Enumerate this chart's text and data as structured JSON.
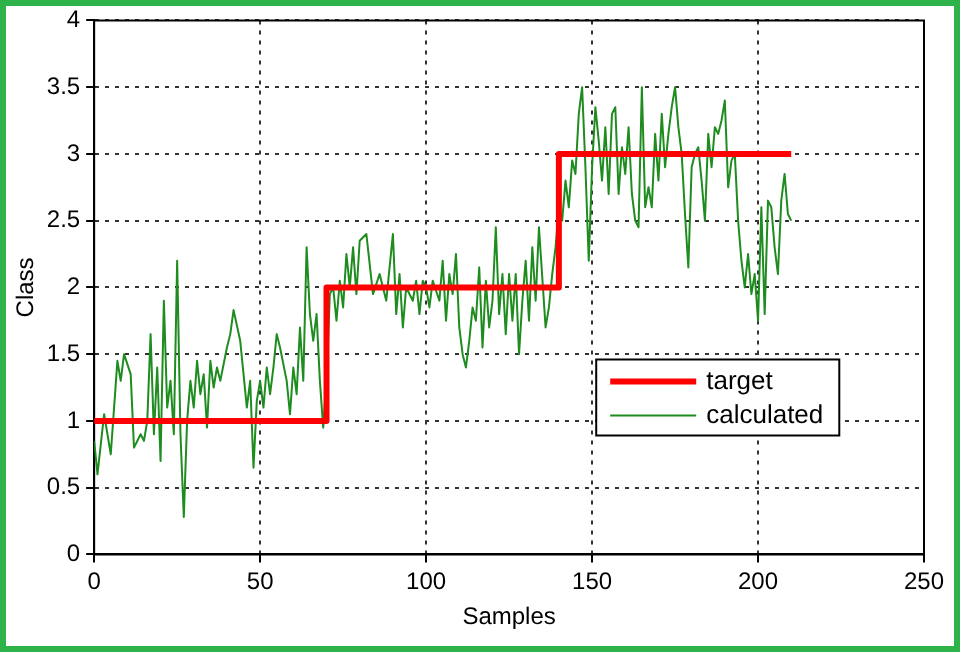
{
  "chart_data": {
    "type": "line",
    "xlabel": "Samples",
    "ylabel": "Class",
    "xlim": [
      0,
      250
    ],
    "xticks": [
      0,
      50,
      100,
      150,
      200,
      250
    ],
    "ylim": [
      0,
      4
    ],
    "yticks": [
      0,
      0.5,
      1,
      1.5,
      2,
      2.5,
      3,
      3.5,
      4
    ],
    "grid": true,
    "legend": "right",
    "marker": "none",
    "series": [
      {
        "name": "target",
        "color": "#ff0000",
        "x": [
          0,
          70,
          70,
          140,
          140,
          210
        ],
        "values": [
          1,
          1,
          2,
          2,
          3,
          3
        ]
      },
      {
        "name": "calculated",
        "color": "#1e8c1e",
        "x": [
          0,
          1,
          3,
          5,
          7,
          8,
          9,
          11,
          12,
          14,
          15,
          16,
          17,
          18,
          19,
          20,
          21,
          22,
          23,
          24,
          25,
          26,
          27,
          28,
          29,
          30,
          31,
          32,
          33,
          34,
          35,
          36,
          37,
          38,
          40,
          41,
          42,
          44,
          46,
          47,
          48,
          49,
          50,
          51,
          52,
          53,
          54,
          55,
          56,
          58,
          59,
          60,
          61,
          62,
          63,
          64,
          65,
          66,
          67,
          68,
          69,
          70,
          71,
          72,
          73,
          74,
          75,
          76,
          77,
          78,
          79,
          80,
          82,
          84,
          86,
          88,
          90,
          91,
          92,
          93,
          94,
          96,
          97,
          98,
          99,
          100,
          101,
          102,
          104,
          105,
          106,
          107,
          108,
          109,
          110,
          111,
          112,
          113,
          114,
          115,
          116,
          117,
          118,
          119,
          120,
          121,
          122,
          123,
          124,
          125,
          126,
          127,
          128,
          129,
          130,
          131,
          132,
          133,
          134,
          136,
          137,
          138,
          139,
          140,
          141,
          142,
          143,
          144,
          145,
          146,
          147,
          148,
          149,
          150,
          151,
          152,
          153,
          154,
          155,
          156,
          157,
          158,
          159,
          160,
          161,
          162,
          163,
          164,
          165,
          166,
          167,
          168,
          169,
          170,
          171,
          172,
          173,
          174,
          175,
          176,
          177,
          178,
          179,
          180,
          181,
          182,
          183,
          184,
          185,
          186,
          187,
          188,
          189,
          190,
          191,
          192,
          193,
          194,
          195,
          196,
          197,
          198,
          199,
          200,
          201,
          202,
          203,
          204,
          205,
          206,
          207,
          208,
          209,
          210
        ],
        "values": [
          0.85,
          0.6,
          1.05,
          0.75,
          1.45,
          1.3,
          1.5,
          1.35,
          0.8,
          0.9,
          0.85,
          1.0,
          1.65,
          0.9,
          1.4,
          0.7,
          1.9,
          1.1,
          1.3,
          0.9,
          2.2,
          0.9,
          0.28,
          1.0,
          1.3,
          1.1,
          1.45,
          1.2,
          1.35,
          0.95,
          1.45,
          1.25,
          1.4,
          1.3,
          1.55,
          1.65,
          1.83,
          1.6,
          1.1,
          1.3,
          0.65,
          1.15,
          1.3,
          1.1,
          1.4,
          1.2,
          1.4,
          1.65,
          1.55,
          1.3,
          1.05,
          1.4,
          1.2,
          1.7,
          1.3,
          2.3,
          1.8,
          1.6,
          1.8,
          1.3,
          0.95,
          1.3,
          1.95,
          2.0,
          1.75,
          2.05,
          1.85,
          2.25,
          2.0,
          2.3,
          1.95,
          2.35,
          2.4,
          1.95,
          2.1,
          1.9,
          2.4,
          1.8,
          2.1,
          1.7,
          2.0,
          1.9,
          2.05,
          1.8,
          2.05,
          2.0,
          1.85,
          2.05,
          1.9,
          2.2,
          1.75,
          2.1,
          1.95,
          2.25,
          1.7,
          1.5,
          1.4,
          1.6,
          1.85,
          1.75,
          2.15,
          1.55,
          2.05,
          1.7,
          1.9,
          2.45,
          1.8,
          2.1,
          1.65,
          2.1,
          1.75,
          2.1,
          1.5,
          1.9,
          2.2,
          1.75,
          2.3,
          1.9,
          2.45,
          1.7,
          1.85,
          2.1,
          2.3,
          2.6,
          2.5,
          2.8,
          2.6,
          2.95,
          2.85,
          3.3,
          3.5,
          2.9,
          2.2,
          2.9,
          3.35,
          3.1,
          2.8,
          3.2,
          2.7,
          3.3,
          3.35,
          2.7,
          3.05,
          2.85,
          3.2,
          2.7,
          2.5,
          2.45,
          3.5,
          2.6,
          2.75,
          2.6,
          3.15,
          2.8,
          3.3,
          2.9,
          3.15,
          3.35,
          3.5,
          3.2,
          3.0,
          2.55,
          2.15,
          2.9,
          3.0,
          3.05,
          2.8,
          2.5,
          3.15,
          2.9,
          3.2,
          3.15,
          3.25,
          3.4,
          2.75,
          2.95,
          3.0,
          2.5,
          2.2,
          2.0,
          2.25,
          1.95,
          2.1,
          1.75,
          2.6,
          1.8,
          2.65,
          2.6,
          2.3,
          2.1,
          2.65,
          2.85,
          2.55,
          2.5
        ]
      }
    ]
  }
}
